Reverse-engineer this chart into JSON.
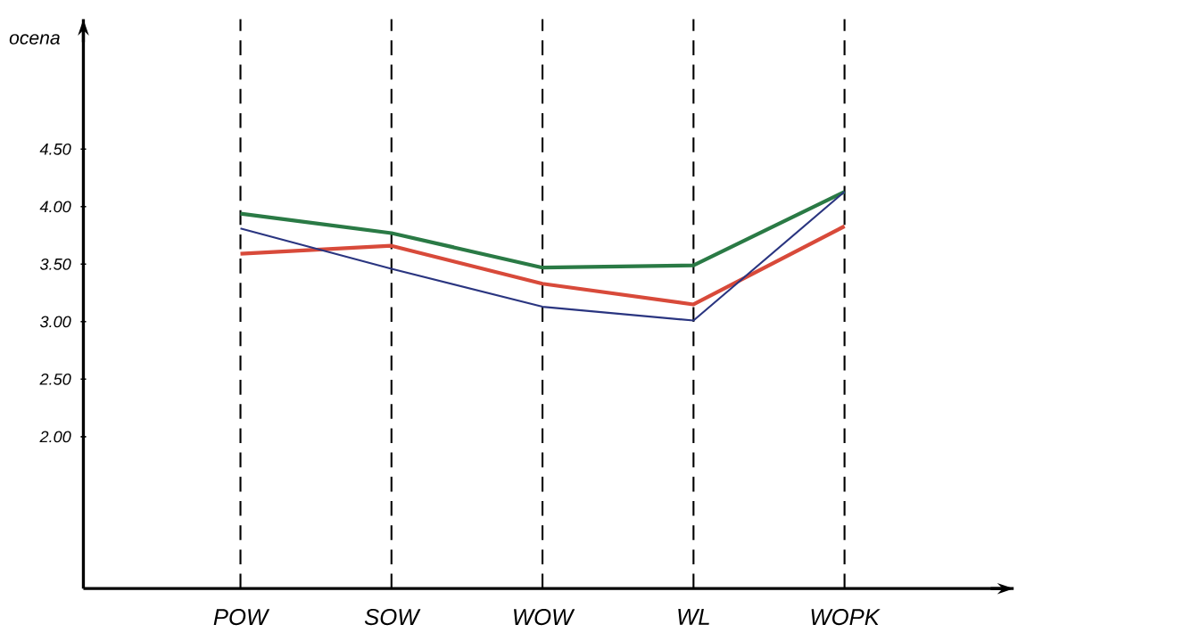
{
  "chart_data": {
    "type": "line",
    "ylabel": "ocena",
    "categories": [
      "POW",
      "SOW",
      "WOW",
      "WL",
      "WOPK"
    ],
    "series": [
      {
        "color": "#2a7a45",
        "values": [
          3.94,
          3.77,
          3.47,
          3.49,
          4.13
        ]
      },
      {
        "color": "#d84a3a",
        "values": [
          3.59,
          3.66,
          3.33,
          3.15,
          3.83
        ]
      },
      {
        "color": "#2a3580",
        "values": [
          3.81,
          3.46,
          3.13,
          3.01,
          4.13
        ]
      }
    ],
    "ylim": [
      0.68,
      5.63
    ],
    "yticks": [
      {
        "value": 2.0,
        "label": "2.00"
      },
      {
        "value": 2.5,
        "label": "2.50"
      },
      {
        "value": 3.0,
        "label": "3.00"
      },
      {
        "value": 3.5,
        "label": "3.50"
      },
      {
        "value": 4.0,
        "label": "4.00"
      },
      {
        "value": 4.5,
        "label": "4.50"
      }
    ],
    "grid": "x",
    "marker": "none",
    "line_style": "solid"
  }
}
